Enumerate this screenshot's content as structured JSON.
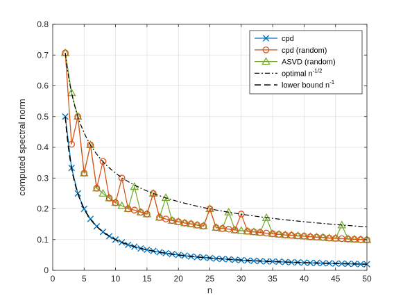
{
  "colors": {
    "cpd": "#0072BD",
    "cpd_random": "#D95319",
    "asvd_random": "#77AC30",
    "optimal": "#000000",
    "lower_bound": "#000000",
    "grid": "#e0e0e0",
    "axis": "#262626"
  },
  "chart_data": {
    "type": "line",
    "title": "",
    "xlabel": "n",
    "ylabel": "computed spectral norm",
    "xlim": [
      0,
      50
    ],
    "ylim": [
      0,
      0.8
    ],
    "xticks": [
      0,
      5,
      10,
      15,
      20,
      25,
      30,
      35,
      40,
      45,
      50
    ],
    "yticks": [
      0,
      0.1,
      0.2,
      0.3,
      0.4,
      0.5,
      0.6,
      0.7,
      0.8
    ],
    "xtick_labels": [
      "0",
      "5",
      "10",
      "15",
      "20",
      "25",
      "30",
      "35",
      "40",
      "45",
      "50"
    ],
    "ytick_labels": [
      "0",
      "0.1",
      "0.2",
      "0.3",
      "0.4",
      "0.5",
      "0.6",
      "0.7",
      "0.8"
    ],
    "grid": true,
    "legend_position": "top-right",
    "legend": [
      {
        "label": "cpd",
        "series": "cpd"
      },
      {
        "label": "cpd (random)",
        "series": "cpd_random"
      },
      {
        "label": "ASVD (random)",
        "series": "asvd_random"
      },
      {
        "label": "optimal n",
        "sup": "-1/2",
        "series": "optimal"
      },
      {
        "label": "lower bound n",
        "sup": "-1",
        "series": "lower_bound"
      }
    ],
    "x": [
      2,
      3,
      4,
      5,
      6,
      7,
      8,
      9,
      10,
      11,
      12,
      13,
      14,
      15,
      16,
      17,
      18,
      19,
      20,
      21,
      22,
      23,
      24,
      25,
      26,
      27,
      28,
      29,
      30,
      31,
      32,
      33,
      34,
      35,
      36,
      37,
      38,
      39,
      40,
      41,
      42,
      43,
      44,
      45,
      46,
      47,
      48,
      49,
      50
    ],
    "series": [
      {
        "key": "cpd",
        "name": "cpd",
        "marker": "x",
        "line": "solid",
        "values": [
          0.5,
          0.333,
          0.25,
          0.2,
          0.167,
          0.143,
          0.125,
          0.111,
          0.1,
          0.091,
          0.083,
          0.077,
          0.071,
          0.067,
          0.063,
          0.059,
          0.056,
          0.053,
          0.05,
          0.048,
          0.045,
          0.043,
          0.042,
          0.04,
          0.038,
          0.037,
          0.036,
          0.034,
          0.033,
          0.032,
          0.031,
          0.03,
          0.029,
          0.029,
          0.028,
          0.027,
          0.026,
          0.026,
          0.025,
          0.024,
          0.024,
          0.023,
          0.023,
          0.022,
          0.022,
          0.021,
          0.021,
          0.02,
          0.02
        ]
      },
      {
        "key": "cpd_random",
        "name": "cpd (random)",
        "marker": "o",
        "line": "solid",
        "values": [
          0.707,
          0.41,
          0.5,
          0.316,
          0.408,
          0.267,
          0.354,
          0.235,
          0.22,
          0.3,
          0.2,
          0.196,
          0.189,
          0.183,
          0.25,
          0.172,
          0.167,
          0.162,
          0.158,
          0.154,
          0.151,
          0.147,
          0.144,
          0.2,
          0.139,
          0.136,
          0.134,
          0.131,
          0.183,
          0.127,
          0.125,
          0.123,
          0.121,
          0.119,
          0.117,
          0.115,
          0.114,
          0.112,
          0.111,
          0.109,
          0.108,
          0.107,
          0.105,
          0.104,
          0.103,
          0.102,
          0.101,
          0.1,
          0.099
        ]
      },
      {
        "key": "asvd_random",
        "name": "ASVD (random)",
        "marker": "^",
        "line": "solid",
        "values": [
          0.707,
          0.577,
          0.5,
          0.316,
          0.408,
          0.267,
          0.25,
          0.235,
          0.22,
          0.21,
          0.2,
          0.272,
          0.189,
          0.183,
          0.25,
          0.172,
          0.236,
          0.162,
          0.158,
          0.154,
          0.151,
          0.147,
          0.144,
          0.2,
          0.139,
          0.136,
          0.189,
          0.131,
          0.129,
          0.127,
          0.125,
          0.123,
          0.171,
          0.119,
          0.117,
          0.115,
          0.114,
          0.112,
          0.111,
          0.109,
          0.108,
          0.107,
          0.105,
          0.104,
          0.147,
          0.102,
          0.101,
          0.1,
          0.099
        ]
      },
      {
        "key": "optimal",
        "name": "optimal n^-1/2",
        "marker": "none",
        "line": "dashdot",
        "formula": "n^-1/2"
      },
      {
        "key": "lower_bound",
        "name": "lower bound n^-1",
        "marker": "none",
        "line": "dashed",
        "formula": "n^-1"
      }
    ]
  }
}
